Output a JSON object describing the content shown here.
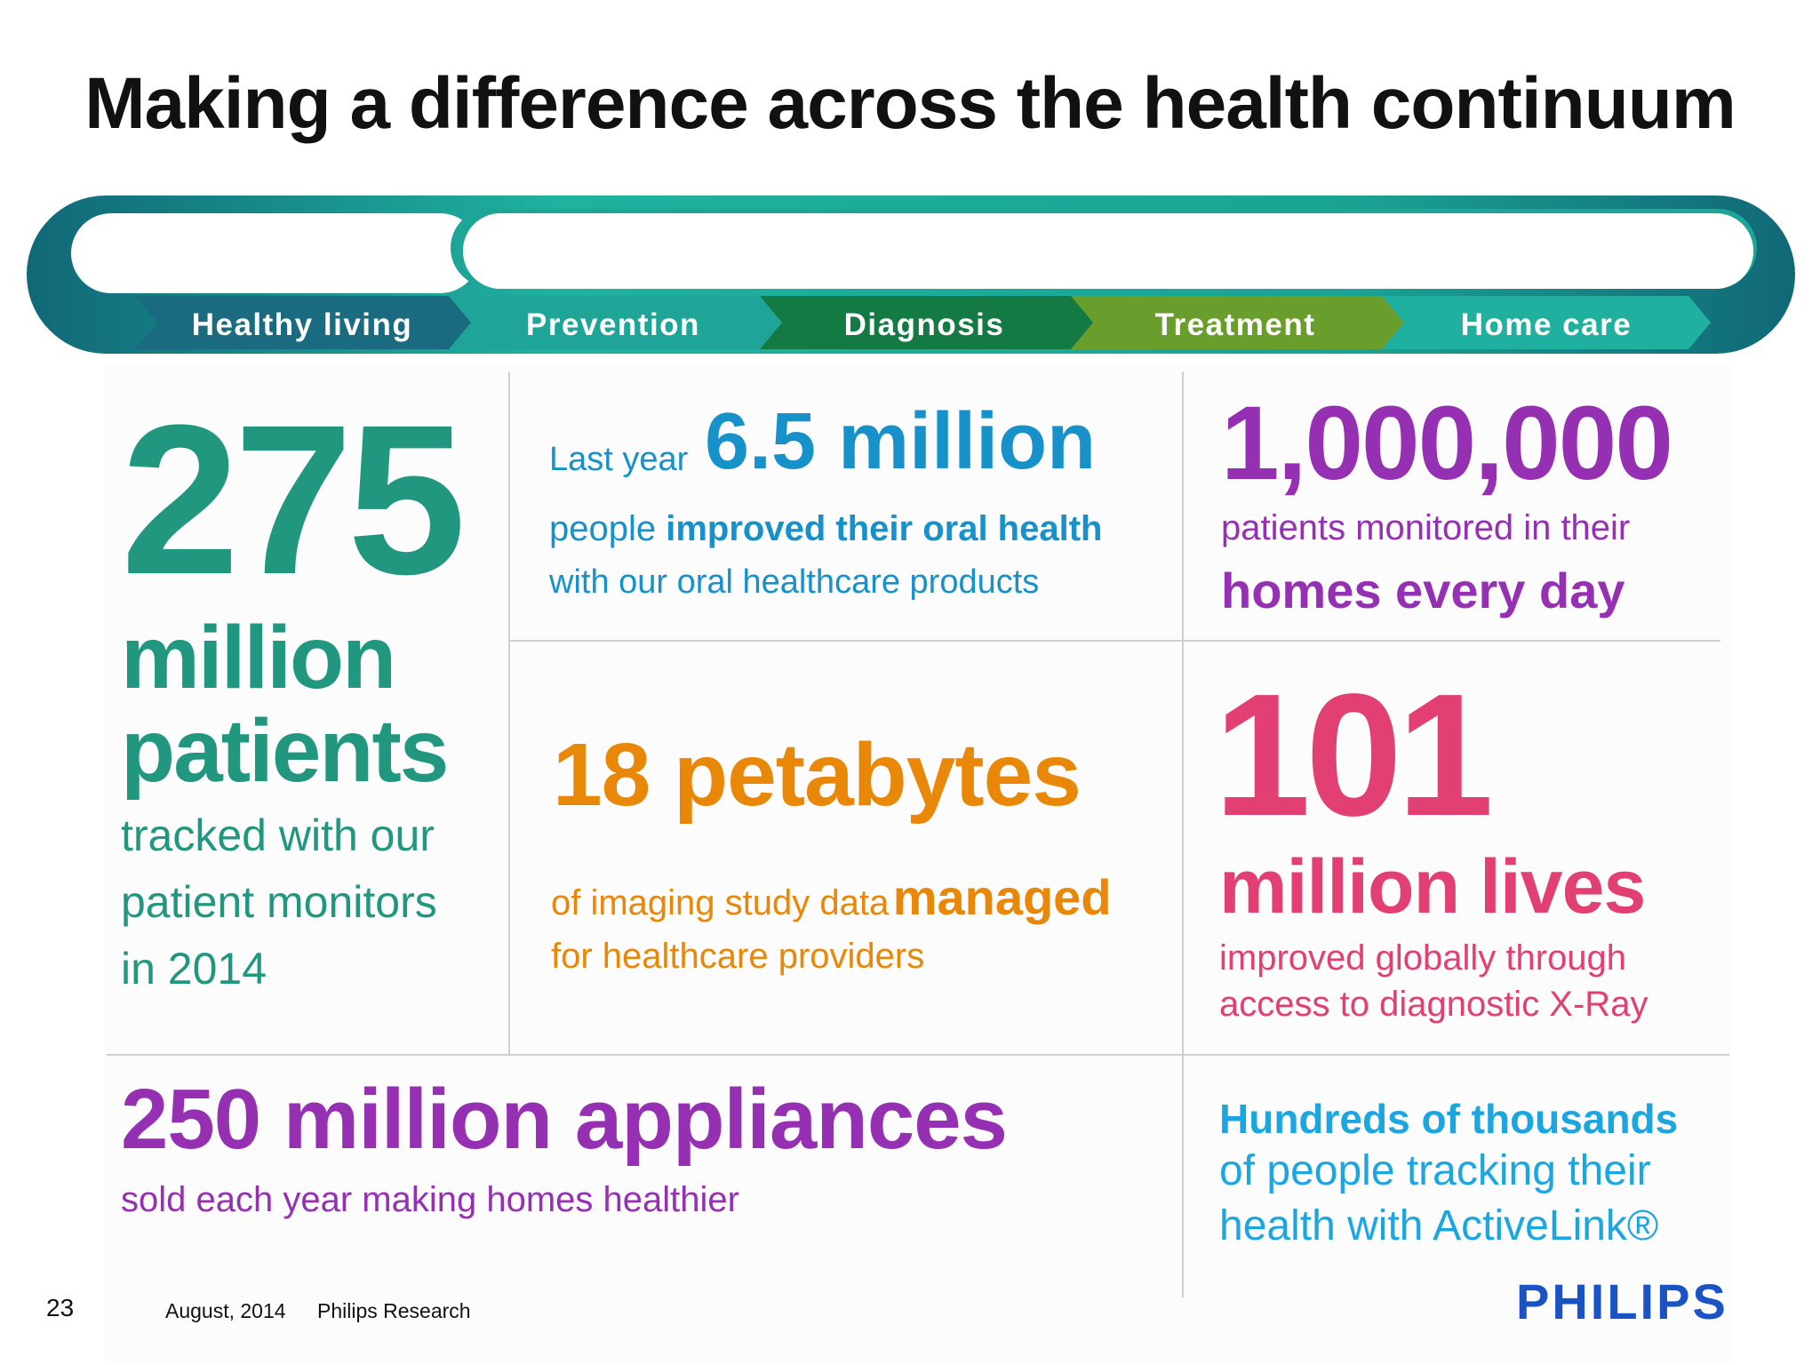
{
  "title": "Making a difference across the health continuum",
  "stages": [
    {
      "label": "Healthy living",
      "color": "#1a6b80"
    },
    {
      "label": "Prevention",
      "color": "#1fa597"
    },
    {
      "label": "Diagnosis",
      "color": "#147a44"
    },
    {
      "label": "Treatment",
      "color": "#6a9e2c"
    },
    {
      "label": "Home care",
      "color": "#20b0a0"
    }
  ],
  "colors": {
    "teal": "#21977f",
    "blue": "#1791c9",
    "purple": "#9630b2",
    "orange": "#e88708",
    "pink": "#e23f73",
    "cyan": "#1ca6e0",
    "banner_dark": "#116877",
    "banner_light": "#1fb29f"
  },
  "stats": {
    "patients": {
      "number": "275",
      "line1": "million",
      "line2": "patients",
      "line3": "tracked with our",
      "line4": "patient monitors",
      "line5": "in 2014"
    },
    "oral": {
      "prefix": "Last year",
      "number": "6.5 million",
      "line1_a": "people",
      "line1_b": "improved their oral health",
      "line2": "with our oral healthcare products"
    },
    "homes": {
      "number": "1,000,000",
      "line1": "patients monitored in their",
      "line2": "homes every day"
    },
    "petabytes": {
      "number": "18 petabytes",
      "line1_a": "of imaging study data",
      "line1_b": "managed",
      "line2": "for healthcare providers"
    },
    "lives": {
      "number": "101",
      "line1": "million lives",
      "line2": "improved globally through",
      "line3": "access to diagnostic X-Ray"
    },
    "appliances": {
      "number": "250 million appliances",
      "line1": "sold each year making homes healthier"
    },
    "activelink": {
      "line1": "Hundreds of thousands",
      "line2": "of people tracking their",
      "line3": "health with ActiveLink®"
    }
  },
  "footer": {
    "page": "23",
    "date": "August, 2014",
    "source": "Philips Research",
    "logo": "PHILIPS"
  }
}
